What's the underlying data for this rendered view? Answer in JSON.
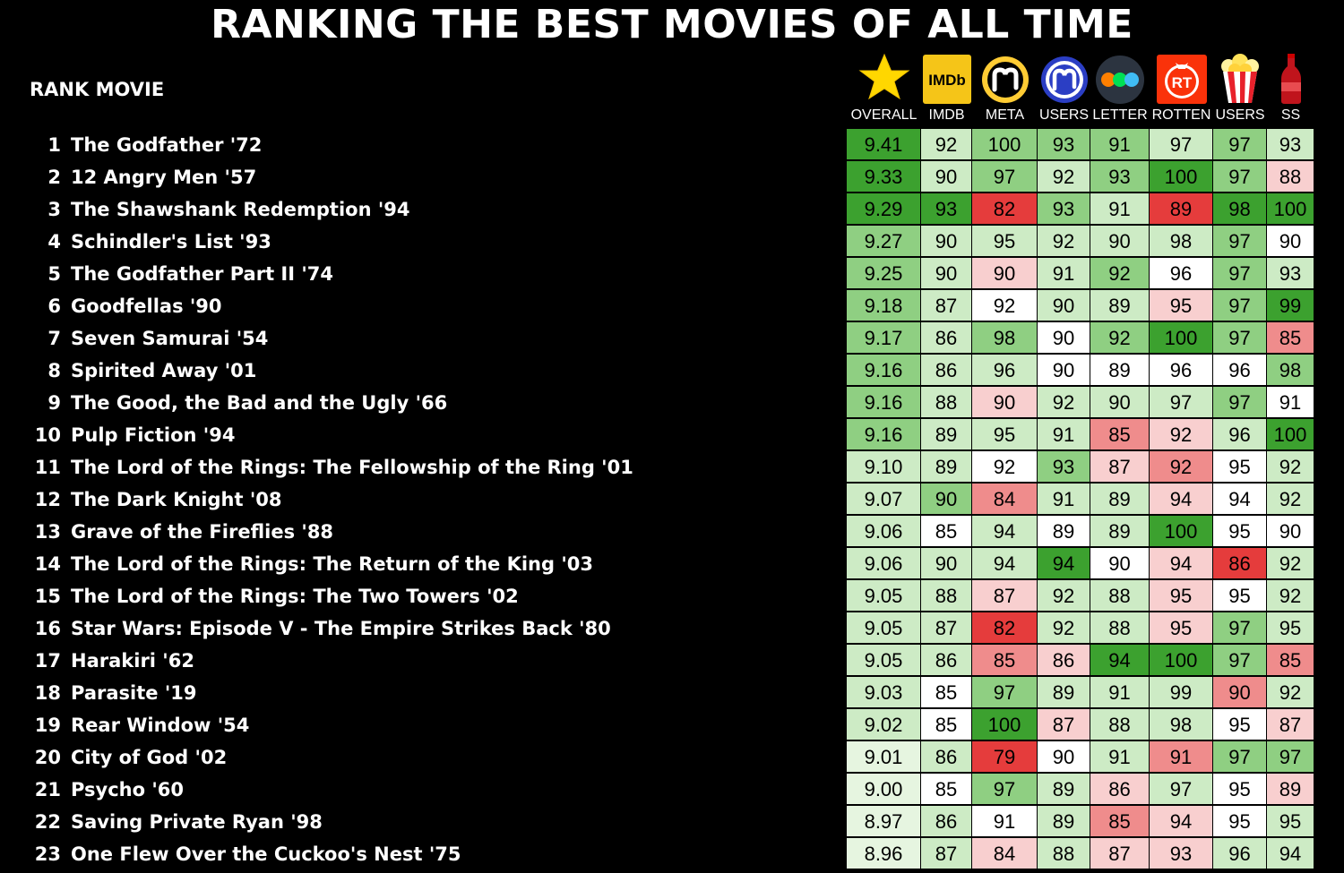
{
  "page": {
    "title": "RANKING THE BEST MOVIES OF ALL TIME",
    "header_label": "RANK MOVIE"
  },
  "columns": [
    {
      "key": "overall",
      "label": "OVERALL",
      "icon": "star-icon"
    },
    {
      "key": "imdb",
      "label": "IMDB",
      "icon": "imdb-logo-icon",
      "logo_text": "IMDb"
    },
    {
      "key": "meta",
      "label": "META",
      "icon": "metacritic-logo-icon"
    },
    {
      "key": "meta_users",
      "label": "USERS",
      "icon": "metacritic-users-logo-icon"
    },
    {
      "key": "letter",
      "label": "LETTER",
      "icon": "letterboxd-logo-icon"
    },
    {
      "key": "rotten",
      "label": "ROTTEN",
      "icon": "rotten-tomatoes-logo-icon",
      "logo_text": "RT"
    },
    {
      "key": "rt_users",
      "label": "USERS",
      "icon": "popcorn-icon"
    },
    {
      "key": "ss",
      "label": "SS",
      "icon": "soda-bottle-icon"
    }
  ],
  "colors": {
    "dark_green": "#3ca12f",
    "mid_green": "#8fcf82",
    "light_green": "#cdebc5",
    "white": "#ffffff",
    "light_red": "#f8cfcf",
    "mid_red": "#ef8c8c",
    "red": "#e53c3c",
    "overall_light": "#e6f5e0"
  },
  "chart_data": {
    "type": "table",
    "title": "RANKING THE BEST MOVIES OF ALL TIME",
    "columns": [
      "OVERALL",
      "IMDB",
      "META",
      "USERS",
      "LETTER",
      "ROTTEN",
      "USERS",
      "SS"
    ],
    "rows": [
      {
        "rank": "1",
        "movie": "The Godfather  '72",
        "values": [
          "9.41",
          "92",
          "100",
          "93",
          "91",
          "97",
          "97",
          "93"
        ]
      },
      {
        "rank": "2",
        "movie": "12 Angry Men  '57",
        "values": [
          "9.33",
          "90",
          "97",
          "92",
          "93",
          "100",
          "97",
          "88"
        ]
      },
      {
        "rank": "3",
        "movie": "The Shawshank Redemption  '94",
        "values": [
          "9.29",
          "93",
          "82",
          "93",
          "91",
          "89",
          "98",
          "100"
        ]
      },
      {
        "rank": "4",
        "movie": "Schindler's List  '93",
        "values": [
          "9.27",
          "90",
          "95",
          "92",
          "90",
          "98",
          "97",
          "90"
        ]
      },
      {
        "rank": "5",
        "movie": "The Godfather Part II  '74",
        "values": [
          "9.25",
          "90",
          "90",
          "91",
          "92",
          "96",
          "97",
          "93"
        ]
      },
      {
        "rank": "6",
        "movie": "Goodfellas  '90",
        "values": [
          "9.18",
          "87",
          "92",
          "90",
          "89",
          "95",
          "97",
          "99"
        ]
      },
      {
        "rank": "7",
        "movie": "Seven Samurai  '54",
        "values": [
          "9.17",
          "86",
          "98",
          "90",
          "92",
          "100",
          "97",
          "85"
        ]
      },
      {
        "rank": "8",
        "movie": "Spirited Away  '01",
        "values": [
          "9.16",
          "86",
          "96",
          "90",
          "89",
          "96",
          "96",
          "98"
        ]
      },
      {
        "rank": "9",
        "movie": "The Good, the Bad and the Ugly  '66",
        "values": [
          "9.16",
          "88",
          "90",
          "92",
          "90",
          "97",
          "97",
          "91"
        ]
      },
      {
        "rank": "10",
        "movie": "Pulp Fiction  '94",
        "values": [
          "9.16",
          "89",
          "95",
          "91",
          "85",
          "92",
          "96",
          "100"
        ]
      },
      {
        "rank": "11",
        "movie": "The Lord of the Rings: The Fellowship of the Ring  '01",
        "values": [
          "9.10",
          "89",
          "92",
          "93",
          "87",
          "92",
          "95",
          "92"
        ]
      },
      {
        "rank": "12",
        "movie": "The Dark Knight  '08",
        "values": [
          "9.07",
          "90",
          "84",
          "91",
          "89",
          "94",
          "94",
          "92"
        ]
      },
      {
        "rank": "13",
        "movie": "Grave of the Fireflies  '88",
        "values": [
          "9.06",
          "85",
          "94",
          "89",
          "89",
          "100",
          "95",
          "90"
        ]
      },
      {
        "rank": "14",
        "movie": "The Lord of the Rings: The Return of the King  '03",
        "values": [
          "9.06",
          "90",
          "94",
          "94",
          "90",
          "94",
          "86",
          "92"
        ]
      },
      {
        "rank": "15",
        "movie": "The Lord of the Rings: The Two Towers  '02",
        "values": [
          "9.05",
          "88",
          "87",
          "92",
          "88",
          "95",
          "95",
          "92"
        ]
      },
      {
        "rank": "16",
        "movie": "Star Wars: Episode V - The Empire Strikes Back  '80",
        "values": [
          "9.05",
          "87",
          "82",
          "92",
          "88",
          "95",
          "97",
          "95"
        ]
      },
      {
        "rank": "17",
        "movie": "Harakiri  '62",
        "values": [
          "9.05",
          "86",
          "85",
          "86",
          "94",
          "100",
          "97",
          "85"
        ]
      },
      {
        "rank": "18",
        "movie": "Parasite  '19",
        "values": [
          "9.03",
          "85",
          "97",
          "89",
          "91",
          "99",
          "90",
          "92"
        ]
      },
      {
        "rank": "19",
        "movie": "Rear Window  '54",
        "values": [
          "9.02",
          "85",
          "100",
          "87",
          "88",
          "98",
          "95",
          "87"
        ]
      },
      {
        "rank": "20",
        "movie": "City of God  '02",
        "values": [
          "9.01",
          "86",
          "79",
          "90",
          "91",
          "91",
          "97",
          "97"
        ]
      },
      {
        "rank": "21",
        "movie": "Psycho  '60",
        "values": [
          "9.00",
          "85",
          "97",
          "89",
          "86",
          "97",
          "95",
          "89"
        ]
      },
      {
        "rank": "22",
        "movie": "Saving Private Ryan  '98",
        "values": [
          "8.97",
          "86",
          "91",
          "89",
          "85",
          "94",
          "95",
          "95"
        ]
      },
      {
        "rank": "23",
        "movie": "One Flew Over the Cuckoo's Nest  '75",
        "values": [
          "8.96",
          "87",
          "84",
          "88",
          "87",
          "93",
          "96",
          "94"
        ]
      }
    ],
    "cell_shades": [
      [
        "dark_green",
        "light_green",
        "mid_green",
        "mid_green",
        "mid_green",
        "light_green",
        "mid_green",
        "light_green"
      ],
      [
        "dark_green",
        "light_green",
        "mid_green",
        "light_green",
        "mid_green",
        "dark_green",
        "mid_green",
        "light_red"
      ],
      [
        "dark_green",
        "dark_green",
        "red",
        "mid_green",
        "light_green",
        "red",
        "dark_green",
        "dark_green"
      ],
      [
        "mid_green",
        "light_green",
        "light_green",
        "light_green",
        "light_green",
        "light_green",
        "mid_green",
        "white"
      ],
      [
        "mid_green",
        "light_green",
        "light_red",
        "light_green",
        "mid_green",
        "white",
        "mid_green",
        "light_green"
      ],
      [
        "mid_green",
        "light_green",
        "white",
        "light_green",
        "light_green",
        "light_red",
        "mid_green",
        "dark_green"
      ],
      [
        "mid_green",
        "light_green",
        "mid_green",
        "white",
        "mid_green",
        "dark_green",
        "mid_green",
        "mid_red"
      ],
      [
        "mid_green",
        "light_green",
        "light_green",
        "white",
        "white",
        "white",
        "white",
        "mid_green"
      ],
      [
        "mid_green",
        "light_green",
        "light_red",
        "light_green",
        "light_green",
        "light_green",
        "mid_green",
        "white"
      ],
      [
        "mid_green",
        "light_green",
        "light_green",
        "light_green",
        "mid_red",
        "light_red",
        "light_green",
        "dark_green"
      ],
      [
        "light_green",
        "light_green",
        "white",
        "mid_green",
        "light_red",
        "mid_red",
        "white",
        "light_green"
      ],
      [
        "light_green",
        "mid_green",
        "mid_red",
        "light_green",
        "light_green",
        "light_red",
        "white",
        "light_green"
      ],
      [
        "light_green",
        "white",
        "light_green",
        "white",
        "light_green",
        "dark_green",
        "white",
        "white"
      ],
      [
        "light_green",
        "light_green",
        "light_green",
        "dark_green",
        "white",
        "light_red",
        "red",
        "light_green"
      ],
      [
        "light_green",
        "light_green",
        "light_red",
        "light_green",
        "light_green",
        "light_red",
        "white",
        "light_green"
      ],
      [
        "light_green",
        "light_green",
        "red",
        "light_green",
        "light_green",
        "light_red",
        "mid_green",
        "light_green"
      ],
      [
        "light_green",
        "light_green",
        "mid_red",
        "light_red",
        "dark_green",
        "dark_green",
        "mid_green",
        "mid_red"
      ],
      [
        "light_green",
        "white",
        "mid_green",
        "light_green",
        "light_green",
        "light_green",
        "mid_red",
        "light_green"
      ],
      [
        "light_green",
        "white",
        "dark_green",
        "light_red",
        "light_green",
        "light_green",
        "white",
        "light_red"
      ],
      [
        "overall_light",
        "light_green",
        "red",
        "white",
        "light_green",
        "mid_red",
        "mid_green",
        "mid_green"
      ],
      [
        "overall_light",
        "white",
        "mid_green",
        "light_green",
        "light_red",
        "light_green",
        "white",
        "light_red"
      ],
      [
        "overall_light",
        "light_green",
        "white",
        "light_green",
        "mid_red",
        "light_red",
        "white",
        "light_green"
      ],
      [
        "overall_light",
        "light_green",
        "light_red",
        "light_green",
        "light_red",
        "light_red",
        "light_green",
        "light_green"
      ]
    ]
  }
}
